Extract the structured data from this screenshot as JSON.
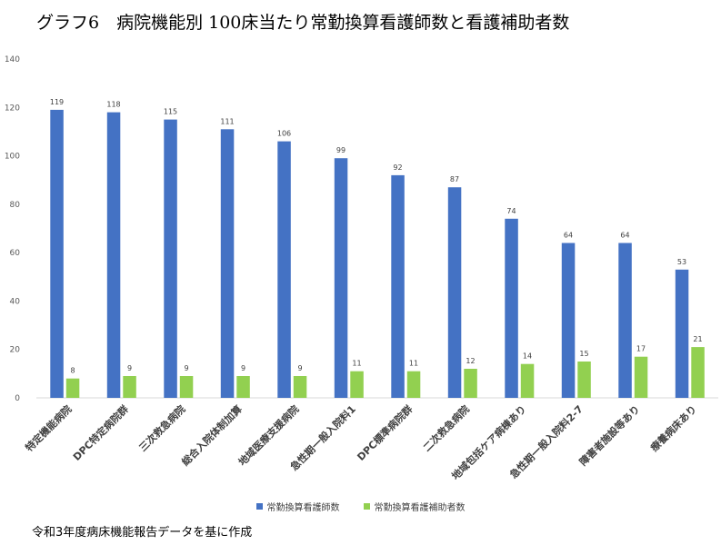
{
  "title": "グラフ6　病院機能別 100床当たり常勤換算看護師数と看護補助者数",
  "source": "令和3年度病床機能報告データを基に作成",
  "colors": {
    "series1": "#4472C4",
    "series2": "#92D050",
    "axis": "#d9d9d9",
    "text": "#595959"
  },
  "chart_data": {
    "type": "bar",
    "title": "グラフ6　病院機能別 100床当たり常勤換算看護師数と看護補助者数",
    "categories": [
      "特定機能病院",
      "DPC特定病院群",
      "三次救急病院",
      "総合入院体制加算",
      "地域医療支援病院",
      "急性期一般入院料1",
      "DPC標準病院群",
      "二次救急病院",
      "地域包括ケア病棟あり",
      "急性期一般入院料2-7",
      "障害者施設等あり",
      "療養病床あり"
    ],
    "series": [
      {
        "name": "常勤換算看護師数",
        "values": [
          119,
          118,
          115,
          111,
          106,
          99,
          92,
          87,
          74,
          64,
          64,
          53
        ]
      },
      {
        "name": "常勤換算看護補助者数",
        "values": [
          8,
          9,
          9,
          9,
          9,
          11,
          11,
          12,
          14,
          15,
          17,
          21
        ]
      }
    ],
    "ylim": [
      0,
      140
    ],
    "yticks": [
      0,
      20,
      40,
      60,
      80,
      100,
      120,
      140
    ],
    "grid": false,
    "legend": "bottom"
  }
}
